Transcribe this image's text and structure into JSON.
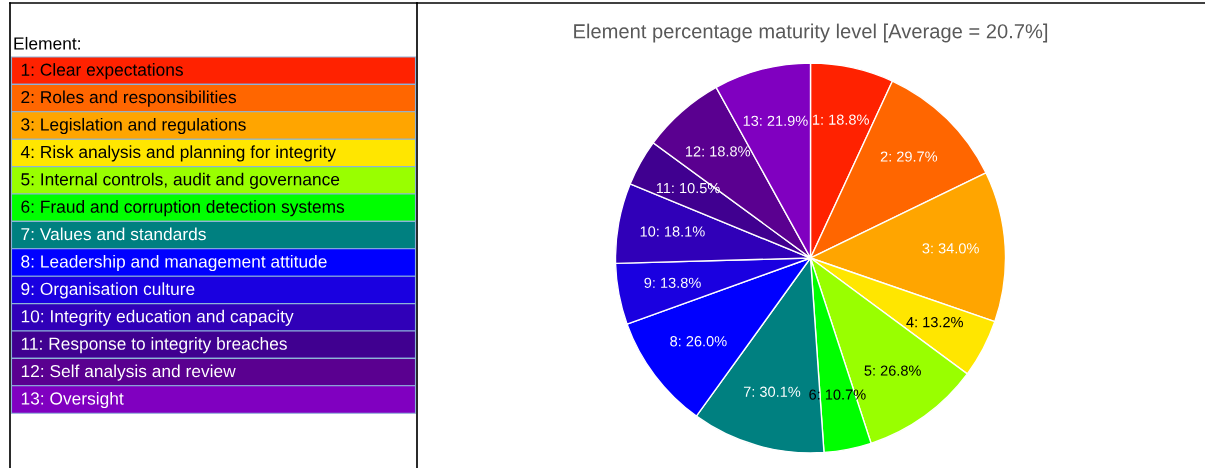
{
  "chart_data": {
    "type": "pie",
    "title": "Element percentage maturity level [Average = 20.7%]",
    "legend_title": "Element:",
    "categories": [
      "1: Clear expectations",
      "2: Roles and responsibilities",
      "3: Legislation and regulations",
      "4: Risk analysis and planning for integrity",
      "5: Internal controls, audit and governance",
      "6: Fraud and corruption detection systems",
      "7: Values and standards",
      "8: Leadership and management attitude",
      "9: Organisation culture",
      "10: Integrity education and capacity",
      "11: Response to integrity breaches",
      "12: Self analysis and review",
      "13: Oversight"
    ],
    "values": [
      18.8,
      29.7,
      34.0,
      13.2,
      26.8,
      10.7,
      30.1,
      26.0,
      13.8,
      18.1,
      10.5,
      18.8,
      21.9
    ],
    "value_labels": [
      "1: 18.8%",
      "2: 29.7%",
      "3: 34.0%",
      "4: 13.2%",
      "5: 26.8%",
      "6: 10.7%",
      "7: 30.1%",
      "8: 26.0%",
      "9: 13.8%",
      "10: 18.1%",
      "11: 10.5%",
      "12: 18.8%",
      "13: 21.9%"
    ],
    "colors": [
      "#ff2200",
      "#ff6600",
      "#ffa500",
      "#ffe600",
      "#99ff00",
      "#00ff00",
      "#008080",
      "#0000ff",
      "#1a00e0",
      "#3000b8",
      "#400090",
      "#5a0090",
      "#8000c0"
    ],
    "legend": "left"
  }
}
